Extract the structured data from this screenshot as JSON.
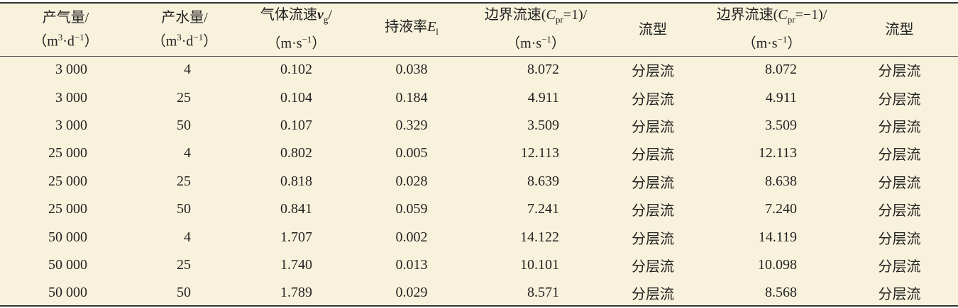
{
  "table": {
    "header": [
      [
        "产气量/",
        "（m",
        "3",
        "·d",
        "−1",
        "）"
      ],
      [
        "产水量/",
        "（m",
        "3",
        "·d",
        "−1",
        "）"
      ],
      [
        "气体流速",
        "v",
        "g",
        "/",
        "（m·s",
        "−1",
        "）"
      ],
      [
        "持液率",
        "E",
        "l"
      ],
      [
        "边界流速(",
        "C",
        "pr",
        "=1)/",
        "（m·s",
        "−1",
        "）"
      ],
      [
        "流型"
      ],
      [
        "边界流速(",
        "C",
        "pr",
        "=−1)/",
        "（m·s",
        "−1",
        "）"
      ],
      [
        "流型"
      ]
    ],
    "rows": [
      [
        "3 000",
        "4",
        "0.102",
        "0.038",
        "8.072",
        "分层流",
        "8.072",
        "分层流"
      ],
      [
        "3 000",
        "25",
        "0.104",
        "0.184",
        "4.911",
        "分层流",
        "4.911",
        "分层流"
      ],
      [
        "3 000",
        "50",
        "0.107",
        "0.329",
        "3.509",
        "分层流",
        "3.509",
        "分层流"
      ],
      [
        "25 000",
        "4",
        "0.802",
        "0.005",
        "12.113",
        "分层流",
        "12.113",
        "分层流"
      ],
      [
        "25 000",
        "25",
        "0.818",
        "0.028",
        "8.639",
        "分层流",
        "8.638",
        "分层流"
      ],
      [
        "25 000",
        "50",
        "0.841",
        "0.059",
        "7.241",
        "分层流",
        "7.240",
        "分层流"
      ],
      [
        "50 000",
        "4",
        "1.707",
        "0.002",
        "14.122",
        "分层流",
        "14.119",
        "分层流"
      ],
      [
        "50 000",
        "25",
        "1.740",
        "0.013",
        "10.101",
        "分层流",
        "10.098",
        "分层流"
      ],
      [
        "50 000",
        "50",
        "1.789",
        "0.029",
        "8.571",
        "分层流",
        "8.568",
        "分层流"
      ]
    ]
  }
}
